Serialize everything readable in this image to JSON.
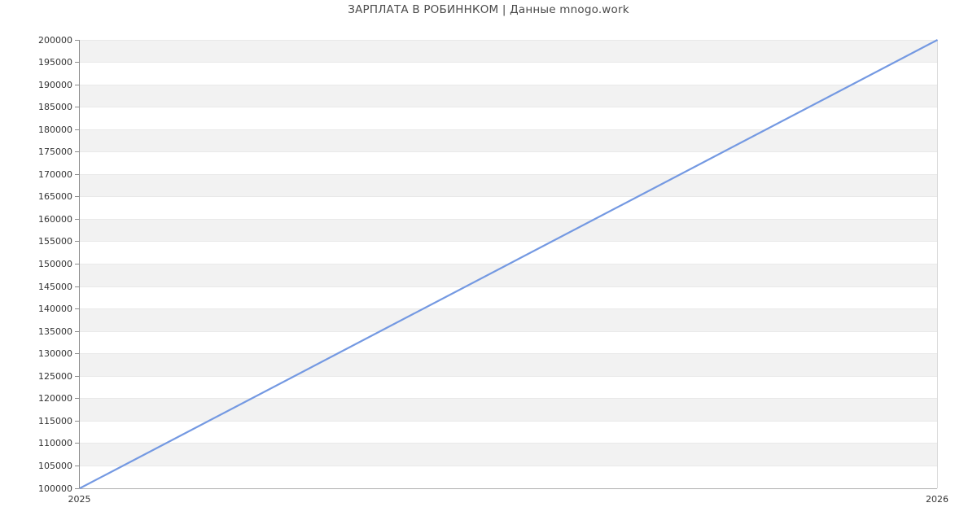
{
  "chart_data": {
    "type": "line",
    "title": "ЗАРПЛАТА В РОБИННКОМ | Данные mnogo.work",
    "x": [
      2025,
      2026
    ],
    "series": [
      {
        "name": "",
        "values": [
          100000,
          200000
        ]
      }
    ],
    "xlabel": "",
    "ylabel": "",
    "xlim": [
      2025,
      2026
    ],
    "ylim": [
      100000,
      200000
    ],
    "ytick_step": 5000,
    "ytick_labels": [
      "200000",
      "195000",
      "190000",
      "185000",
      "180000",
      "175000",
      "170000",
      "165000",
      "160000",
      "155000",
      "150000",
      "145000",
      "140000",
      "135000",
      "130000",
      "125000",
      "120000",
      "115000",
      "110000",
      "105000",
      "100000"
    ],
    "xtick_labels": [
      "2025",
      "2026"
    ],
    "grid": "horizontal-bands-alternating",
    "legend_position": "none",
    "colors": {
      "line": "#7499e2",
      "band_gray": "#f2f2f2",
      "band_white": "#ffffff",
      "horizontal_gridline": "#e9e9e9",
      "right_gridline": "#dcdcdc",
      "y_axis": "#8c8c8c",
      "x_axis": "#b0b0b0",
      "tick_text": "#333333",
      "title_text": "#4a4a4a"
    }
  }
}
